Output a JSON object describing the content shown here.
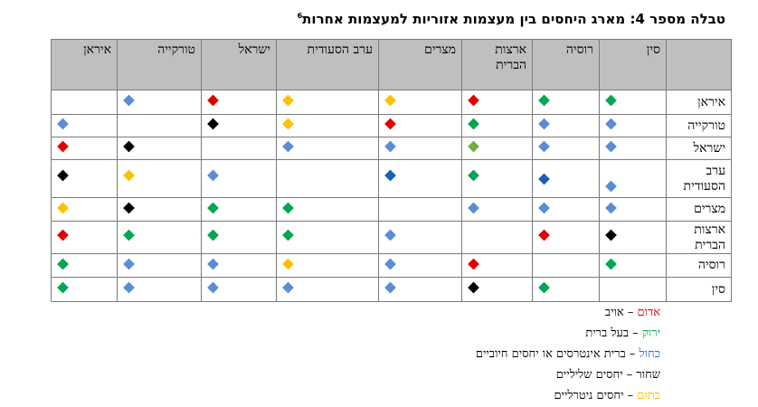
{
  "title": "טבלה מספר 4: מארג היחסים בין מעצמות אזוריות למעצמות אחרות",
  "title_footnote": "6",
  "colors": {
    "red": "#e00000",
    "green": "#00a651",
    "blue": "#5b8dd6",
    "black": "#000000",
    "orange": "#ffc000",
    "darkblue": "#1a5fb4",
    "olive": "#70ad47"
  },
  "columns": [
    {
      "label": "סין"
    },
    {
      "label": "רוסיה"
    },
    {
      "label": "ארצות הברית"
    },
    {
      "label": "מצרים"
    },
    {
      "label": "ערב הסעודית"
    },
    {
      "label": "ישראל"
    },
    {
      "label": "טורקייה"
    },
    {
      "label": "איראן"
    }
  ],
  "rows": [
    {
      "label": "איראן",
      "cells": [
        "green",
        "green",
        "red",
        "orange",
        "orange",
        "red",
        "blue",
        ""
      ]
    },
    {
      "label": "טורקייה",
      "cells": [
        "blue",
        "blue",
        "green",
        "red",
        "orange",
        "black",
        "",
        "blue"
      ]
    },
    {
      "label": "ישראל",
      "cells": [
        "blue",
        "blue",
        "olive",
        "blue",
        "blue",
        "",
        "black",
        "red"
      ]
    },
    {
      "label": "ערב הסעודית",
      "cells": [
        "blue",
        "darkblue",
        "green",
        "darkblue",
        "",
        "blue",
        "orange",
        "black"
      ]
    },
    {
      "label": "מצרים",
      "cells": [
        "blue",
        "blue",
        "blue",
        "",
        "green",
        "green",
        "black",
        "orange"
      ]
    },
    {
      "label": "ארצות הברית",
      "cells": [
        "black",
        "red",
        "",
        "blue",
        "green",
        "green",
        "green",
        "red"
      ]
    },
    {
      "label": "רוסיה",
      "cells": [
        "green",
        "",
        "red",
        "blue",
        "orange",
        "blue",
        "blue",
        "green"
      ]
    },
    {
      "label": "סין",
      "cells": [
        "",
        "green",
        "black",
        "blue",
        "blue",
        "blue",
        "blue",
        "green"
      ]
    }
  ],
  "legend": [
    {
      "color_word": "אדום",
      "desc": " – אויב",
      "color": "#e00000"
    },
    {
      "color_word": "ירוק",
      "desc": " – בעל ברית",
      "color": "#00a651"
    },
    {
      "color_word": "כחול",
      "desc": " – ברית אינטרסים או יחסים חיוביים",
      "color": "#2e75b6"
    },
    {
      "color_word": "שחור",
      "desc": " – יחסים שליליים",
      "color": "#000000"
    },
    {
      "color_word": "כתום",
      "desc": " – יחסים ניטרליים",
      "color": "#ffc000"
    }
  ]
}
